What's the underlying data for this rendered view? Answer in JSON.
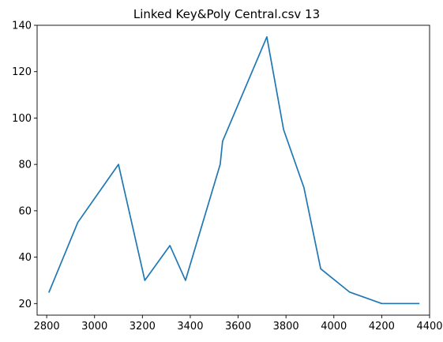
{
  "chart_data": {
    "type": "line",
    "title": "Linked Key&Poly Central.csv 13",
    "xlabel": "",
    "ylabel": "",
    "xlim": [
      2760,
      4400
    ],
    "ylim": [
      15,
      140
    ],
    "x_ticks": [
      2800,
      3000,
      3200,
      3400,
      3600,
      3800,
      4000,
      4200,
      4400
    ],
    "y_ticks": [
      20,
      40,
      60,
      80,
      100,
      120,
      140
    ],
    "grid": false,
    "series": [
      {
        "color": "#1f77b4",
        "points": [
          {
            "x": 2810,
            "y": 25
          },
          {
            "x": 2930,
            "y": 55
          },
          {
            "x": 3100,
            "y": 80
          },
          {
            "x": 3210,
            "y": 30
          },
          {
            "x": 3315,
            "y": 45
          },
          {
            "x": 3380,
            "y": 30
          },
          {
            "x": 3525,
            "y": 80
          },
          {
            "x": 3535,
            "y": 90
          },
          {
            "x": 3720,
            "y": 135
          },
          {
            "x": 3790,
            "y": 95
          },
          {
            "x": 3875,
            "y": 70
          },
          {
            "x": 3945,
            "y": 35
          },
          {
            "x": 4065,
            "y": 25
          },
          {
            "x": 4200,
            "y": 20
          },
          {
            "x": 4355,
            "y": 20
          }
        ]
      }
    ]
  }
}
